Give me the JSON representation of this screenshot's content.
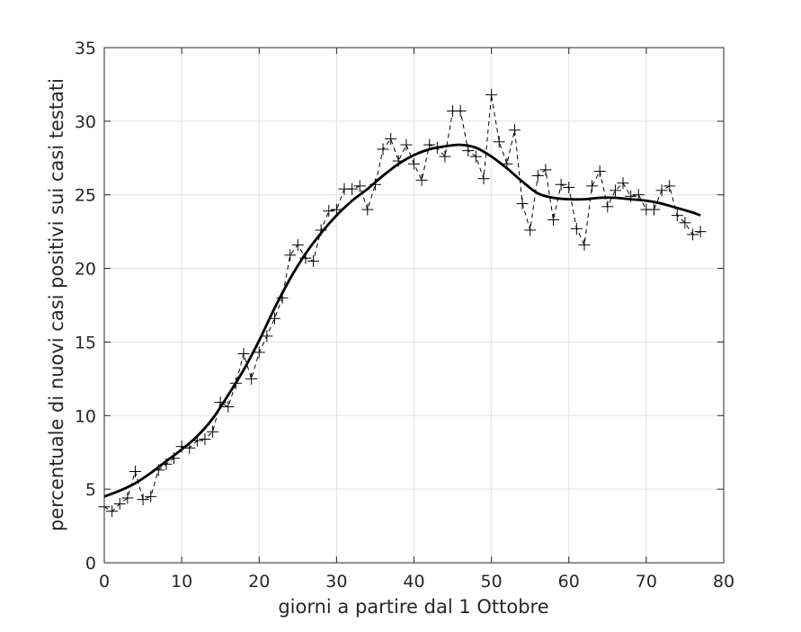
{
  "chart_data": {
    "type": "line",
    "title": "",
    "xlabel": "giorni a partire dal 1 Ottobre",
    "ylabel": "percentuale di nuovi casi positivi sui casi testati",
    "xlim": [
      0,
      80
    ],
    "ylim": [
      0,
      35
    ],
    "xticks": [
      0,
      10,
      20,
      30,
      40,
      50,
      60,
      70,
      80
    ],
    "yticks": [
      0,
      5,
      10,
      15,
      20,
      25,
      30,
      35
    ],
    "grid": true,
    "legend": "none",
    "series": [
      {
        "style": "dashed line with + markers",
        "color": "#000000",
        "x": [
          0,
          1,
          2,
          3,
          4,
          5,
          6,
          7,
          8,
          9,
          10,
          11,
          12,
          13,
          14,
          15,
          16,
          17,
          18,
          19,
          20,
          21,
          22,
          23,
          24,
          25,
          26,
          27,
          28,
          29,
          30,
          31,
          32,
          33,
          34,
          35,
          36,
          37,
          38,
          39,
          40,
          41,
          42,
          43,
          44,
          45,
          46,
          47,
          48,
          49,
          50,
          51,
          52,
          53,
          54,
          55,
          56,
          57,
          58,
          59,
          60,
          61,
          62,
          63,
          64,
          65,
          66,
          67,
          68,
          69,
          70,
          71,
          72,
          73,
          74,
          75,
          76,
          77
        ],
        "y": [
          3.8,
          3.5,
          4.0,
          4.4,
          6.2,
          4.3,
          4.5,
          6.3,
          6.7,
          7.1,
          7.9,
          7.8,
          8.3,
          8.4,
          8.9,
          10.9,
          10.6,
          12.2,
          14.2,
          12.5,
          14.3,
          15.4,
          16.6,
          18.0,
          20.9,
          21.6,
          20.7,
          20.5,
          22.6,
          23.9,
          24.0,
          25.4,
          25.4,
          25.6,
          24.0,
          25.7,
          28.1,
          28.8,
          27.3,
          28.4,
          27.1,
          26.0,
          28.4,
          28.2,
          27.6,
          30.7,
          30.7,
          28.0,
          27.6,
          26.1,
          31.8,
          28.6,
          27.1,
          29.4,
          24.4,
          22.6,
          26.3,
          26.7,
          23.3,
          25.7,
          25.5,
          22.7,
          21.6,
          25.6,
          26.6,
          24.2,
          25.3,
          25.8,
          24.9,
          25.0,
          24.0,
          24.0,
          25.3,
          25.6,
          23.6,
          23.1,
          22.3,
          22.5
        ]
      },
      {
        "style": "solid thick line",
        "color": "#000000",
        "x": [
          0,
          2,
          4,
          6,
          8,
          10,
          12,
          14,
          16,
          18,
          20,
          22,
          24,
          26,
          28,
          30,
          32,
          34,
          36,
          38,
          40,
          42,
          44,
          46,
          48,
          50,
          52,
          54,
          56,
          58,
          60,
          62,
          64,
          66,
          68,
          70,
          72,
          74,
          76,
          77
        ],
        "y": [
          4.5,
          4.9,
          5.4,
          6.1,
          6.9,
          7.7,
          8.6,
          9.8,
          11.4,
          13.1,
          15.1,
          17.3,
          19.3,
          21.0,
          22.4,
          23.6,
          24.6,
          25.4,
          26.3,
          27.1,
          27.7,
          28.1,
          28.3,
          28.4,
          28.2,
          27.6,
          26.8,
          25.9,
          25.1,
          24.8,
          24.7,
          24.7,
          24.8,
          24.8,
          24.7,
          24.6,
          24.4,
          24.1,
          23.8,
          23.6
        ]
      }
    ]
  }
}
